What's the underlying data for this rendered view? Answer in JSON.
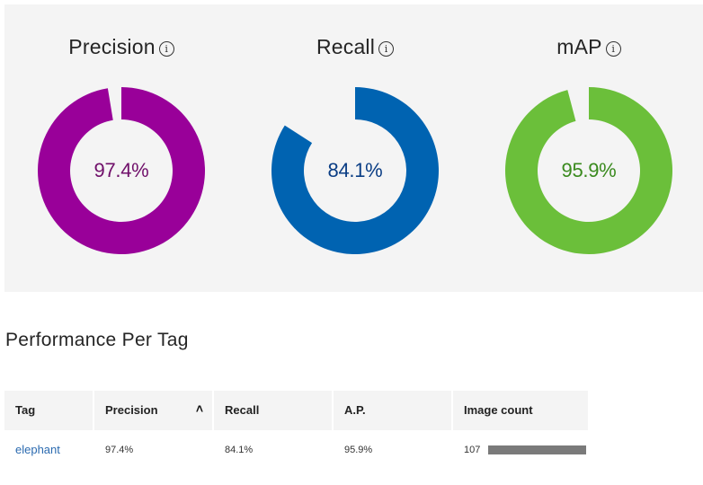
{
  "metrics": [
    {
      "name": "Precision",
      "value_label": "97.4%",
      "value": 97.4,
      "color": "#990099",
      "text_color": "#70106a"
    },
    {
      "name": "Recall",
      "value_label": "84.1%",
      "value": 84.1,
      "color": "#0063b1",
      "text_color": "#0a3d84"
    },
    {
      "name": "mAP",
      "value_label": "95.9%",
      "value": 95.9,
      "color": "#6bbf3a",
      "text_color": "#3a8a1e"
    }
  ],
  "info_icon": "info-circle-icon",
  "section_title": "Performance Per Tag",
  "table": {
    "columns": [
      "Tag",
      "Precision",
      "Recall",
      "A.P.",
      "Image count"
    ],
    "sort_icon": "chevron-up-icon",
    "rows": [
      {
        "tag": "elephant",
        "precision": "97.4%",
        "recall": "84.1%",
        "ap": "95.9%",
        "image_count": "107",
        "image_count_fraction": 1.0
      }
    ]
  }
}
